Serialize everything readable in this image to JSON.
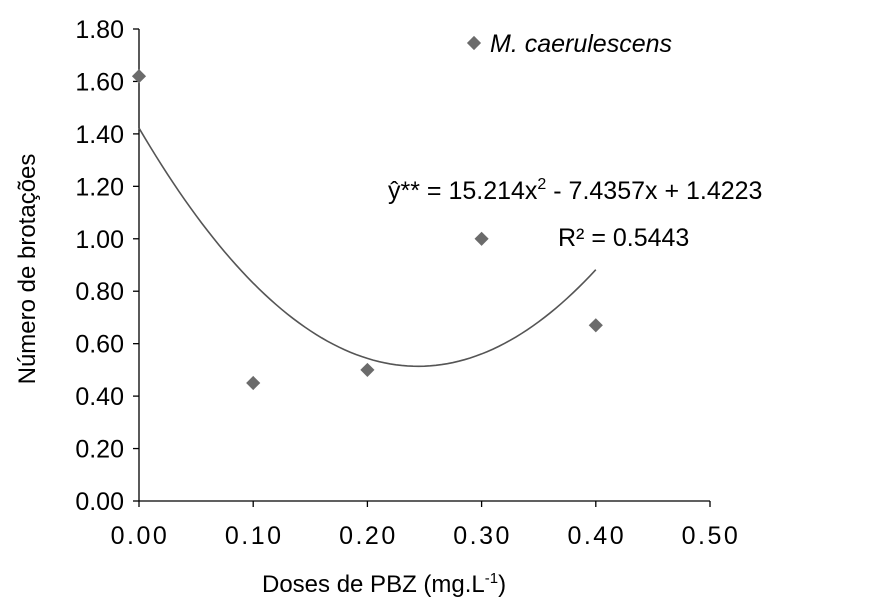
{
  "chart_data": {
    "type": "scatter",
    "title": "",
    "xlabel": "Doses de PBZ (mg.L",
    "xlabel_sup": "-1",
    "xlabel_end": ")",
    "ylabel": "Número de brotações",
    "xlim": [
      0,
      0.5
    ],
    "ylim": [
      0,
      1.8
    ],
    "x_ticks": [
      "0.00",
      "0.10",
      "0.20",
      "0.30",
      "0.40",
      "0.50"
    ],
    "y_ticks": [
      "0.00",
      "0.20",
      "0.40",
      "0.60",
      "0.80",
      "1.00",
      "1.20",
      "1.40",
      "1.60",
      "1.80"
    ],
    "grid": false,
    "legend_position": "top-right",
    "series": [
      {
        "name": "M. caerulescens",
        "marker": "diamond",
        "color": "#6b6b6b",
        "points": [
          {
            "x": 0.0,
            "y": 1.62
          },
          {
            "x": 0.1,
            "y": 0.45
          },
          {
            "x": 0.2,
            "y": 0.5
          },
          {
            "x": 0.3,
            "y": 1.0
          },
          {
            "x": 0.4,
            "y": 0.67
          }
        ]
      }
    ],
    "trendline": {
      "type": "polynomial",
      "coefficients": {
        "a": 15.214,
        "b": -7.4357,
        "c": 1.4223
      },
      "x_range": [
        0,
        0.4
      ],
      "color": "#555555",
      "equation_prefix": "ŷ** = 15.214x",
      "equation_sup": "2",
      "equation_suffix": " - 7.4357x + 1.4223",
      "r_squared_label": "R² = 0.5443"
    }
  }
}
